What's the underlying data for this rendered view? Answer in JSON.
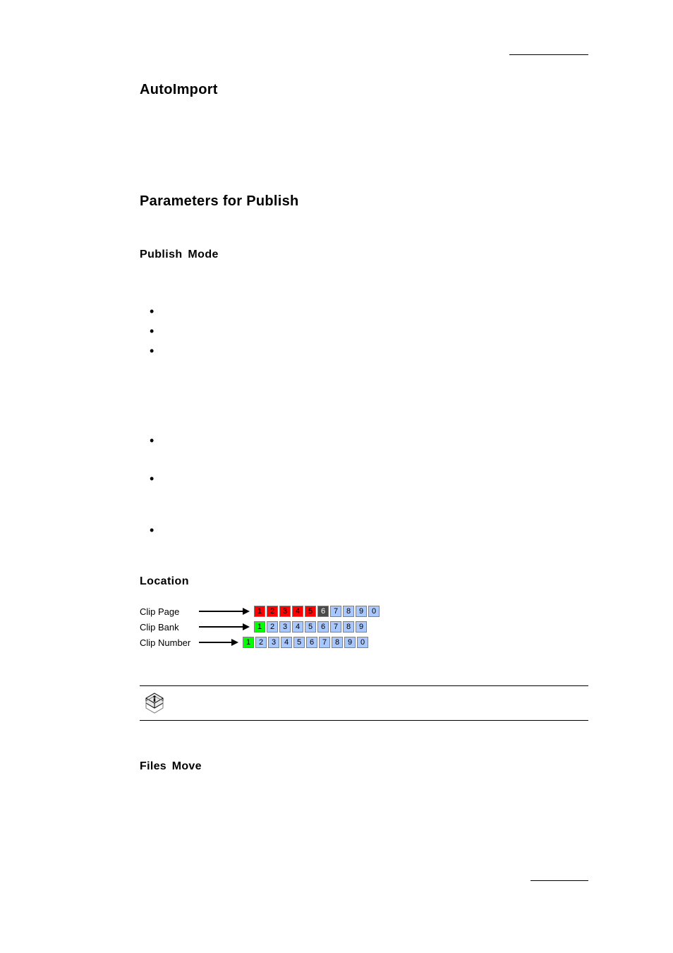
{
  "headings": {
    "autoimport": "AutoImport",
    "params": "Parameters  for  Publish",
    "publish_mode": "Publish  Mode",
    "location": "Location",
    "files_move": "Files  Move"
  },
  "location_diagram": {
    "rows": [
      {
        "label": "Clip Page",
        "arrow_line_width": 62,
        "cells": [
          {
            "n": "1",
            "bg": "#ff0000",
            "fg": "#000000"
          },
          {
            "n": "2",
            "bg": "#ff0000",
            "fg": "#000000"
          },
          {
            "n": "3",
            "bg": "#ff0000",
            "fg": "#000000"
          },
          {
            "n": "4",
            "bg": "#ff0000",
            "fg": "#000000"
          },
          {
            "n": "5",
            "bg": "#ff0000",
            "fg": "#000000"
          },
          {
            "n": "6",
            "bg": "#4a4a4a",
            "fg": "#ffffff"
          },
          {
            "n": "7",
            "bg": "#a8c8ff",
            "fg": "#000000"
          },
          {
            "n": "8",
            "bg": "#a8c8ff",
            "fg": "#000000"
          },
          {
            "n": "9",
            "bg": "#a8c8ff",
            "fg": "#000000"
          },
          {
            "n": "0",
            "bg": "#a8c8ff",
            "fg": "#000000"
          }
        ]
      },
      {
        "label": "Clip Bank",
        "arrow_line_width": 62,
        "cells": [
          {
            "n": "1",
            "bg": "#00ff00",
            "fg": "#000000"
          },
          {
            "n": "2",
            "bg": "#a8c8ff",
            "fg": "#000000"
          },
          {
            "n": "3",
            "bg": "#a8c8ff",
            "fg": "#000000"
          },
          {
            "n": "4",
            "bg": "#a8c8ff",
            "fg": "#000000"
          },
          {
            "n": "5",
            "bg": "#a8c8ff",
            "fg": "#000000"
          },
          {
            "n": "6",
            "bg": "#a8c8ff",
            "fg": "#000000"
          },
          {
            "n": "7",
            "bg": "#a8c8ff",
            "fg": "#000000"
          },
          {
            "n": "8",
            "bg": "#a8c8ff",
            "fg": "#000000"
          },
          {
            "n": "9",
            "bg": "#a8c8ff",
            "fg": "#000000"
          }
        ]
      },
      {
        "label": "Clip Number",
        "arrow_line_width": 46,
        "cells": [
          {
            "n": "1",
            "bg": "#00ff00",
            "fg": "#000000"
          },
          {
            "n": "2",
            "bg": "#a8c8ff",
            "fg": "#000000"
          },
          {
            "n": "3",
            "bg": "#a8c8ff",
            "fg": "#000000"
          },
          {
            "n": "4",
            "bg": "#a8c8ff",
            "fg": "#000000"
          },
          {
            "n": "5",
            "bg": "#a8c8ff",
            "fg": "#000000"
          },
          {
            "n": "6",
            "bg": "#a8c8ff",
            "fg": "#000000"
          },
          {
            "n": "7",
            "bg": "#a8c8ff",
            "fg": "#000000"
          },
          {
            "n": "8",
            "bg": "#a8c8ff",
            "fg": "#000000"
          },
          {
            "n": "9",
            "bg": "#a8c8ff",
            "fg": "#000000"
          },
          {
            "n": "0",
            "bg": "#a8c8ff",
            "fg": "#000000"
          }
        ]
      }
    ]
  },
  "colors": {
    "page_bg": "#ffffff",
    "text": "#000000",
    "rule": "#000000",
    "cell_border": "#808080"
  }
}
